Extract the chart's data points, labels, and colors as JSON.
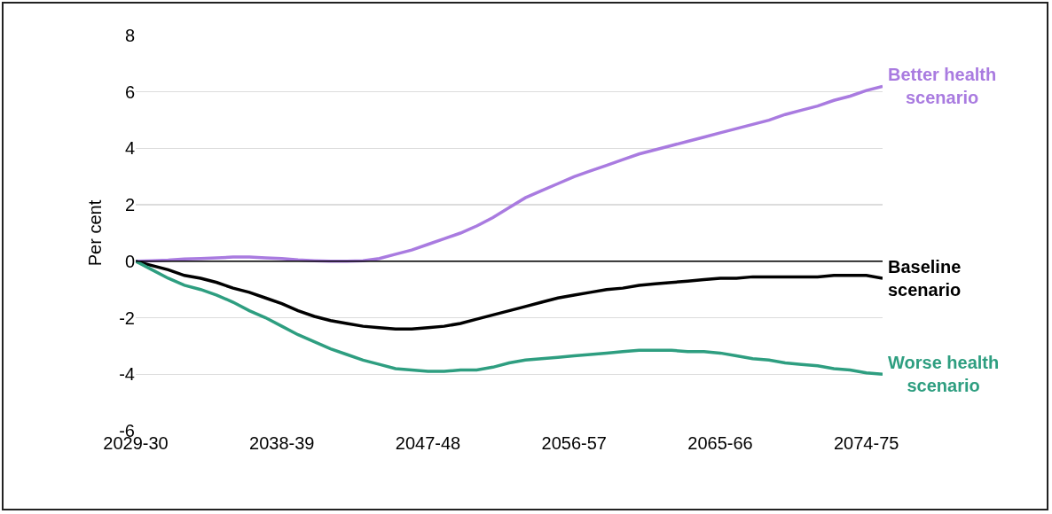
{
  "chart_data": {
    "type": "line",
    "ylabel": "Per cent",
    "categories": [
      "2029-30",
      null,
      null,
      null,
      null,
      null,
      null,
      null,
      null,
      "2038-39",
      null,
      null,
      null,
      null,
      null,
      null,
      null,
      null,
      "2047-48",
      null,
      null,
      null,
      null,
      null,
      null,
      null,
      null,
      "2056-57",
      null,
      null,
      null,
      null,
      null,
      null,
      null,
      null,
      "2065-66",
      null,
      null,
      null,
      null,
      null,
      null,
      null,
      null,
      "2074-75",
      null
    ],
    "series": [
      {
        "name": "Better health scenario",
        "color": "#a97be0",
        "values": [
          0,
          0.02,
          0.04,
          0.08,
          0.1,
          0.12,
          0.15,
          0.15,
          0.12,
          0.1,
          0.05,
          0.02,
          0,
          0,
          0.02,
          0.1,
          0.25,
          0.4,
          0.6,
          0.8,
          1.0,
          1.25,
          1.55,
          1.9,
          2.25,
          2.5,
          2.75,
          3.0,
          3.2,
          3.4,
          3.6,
          3.8,
          3.95,
          4.1,
          4.25,
          4.4,
          4.55,
          4.7,
          4.85,
          5.0,
          5.2,
          5.35,
          5.5,
          5.7,
          5.85,
          6.05,
          6.2
        ]
      },
      {
        "name": "Baseline scenario",
        "color": "#000000",
        "values": [
          0,
          -0.15,
          -0.3,
          -0.5,
          -0.6,
          -0.75,
          -0.95,
          -1.1,
          -1.3,
          -1.5,
          -1.75,
          -1.95,
          -2.1,
          -2.2,
          -2.3,
          -2.35,
          -2.4,
          -2.4,
          -2.35,
          -2.3,
          -2.2,
          -2.05,
          -1.9,
          -1.75,
          -1.6,
          -1.45,
          -1.3,
          -1.2,
          -1.1,
          -1.0,
          -0.95,
          -0.85,
          -0.8,
          -0.75,
          -0.7,
          -0.65,
          -0.6,
          -0.6,
          -0.55,
          -0.55,
          -0.55,
          -0.55,
          -0.55,
          -0.5,
          -0.5,
          -0.5,
          -0.6
        ]
      },
      {
        "name": "Worse health scenario",
        "color": "#2e9e80",
        "values": [
          0,
          -0.3,
          -0.6,
          -0.85,
          -1.0,
          -1.2,
          -1.45,
          -1.75,
          -2.0,
          -2.3,
          -2.6,
          -2.85,
          -3.1,
          -3.3,
          -3.5,
          -3.65,
          -3.8,
          -3.85,
          -3.9,
          -3.9,
          -3.85,
          -3.85,
          -3.75,
          -3.6,
          -3.5,
          -3.45,
          -3.4,
          -3.35,
          -3.3,
          -3.25,
          -3.2,
          -3.15,
          -3.15,
          -3.15,
          -3.2,
          -3.2,
          -3.25,
          -3.35,
          -3.45,
          -3.5,
          -3.6,
          -3.65,
          -3.7,
          -3.8,
          -3.85,
          -3.95,
          -4.0
        ]
      }
    ],
    "ylim": [
      -6,
      8
    ],
    "yticks": [
      -6,
      -4,
      -2,
      0,
      2,
      4,
      6,
      8
    ],
    "ref_lines": [
      {
        "axis": "y",
        "value": 0,
        "color": "#000000"
      }
    ],
    "grid": "y",
    "legend": false,
    "marker": "none",
    "line_style": "solid"
  }
}
